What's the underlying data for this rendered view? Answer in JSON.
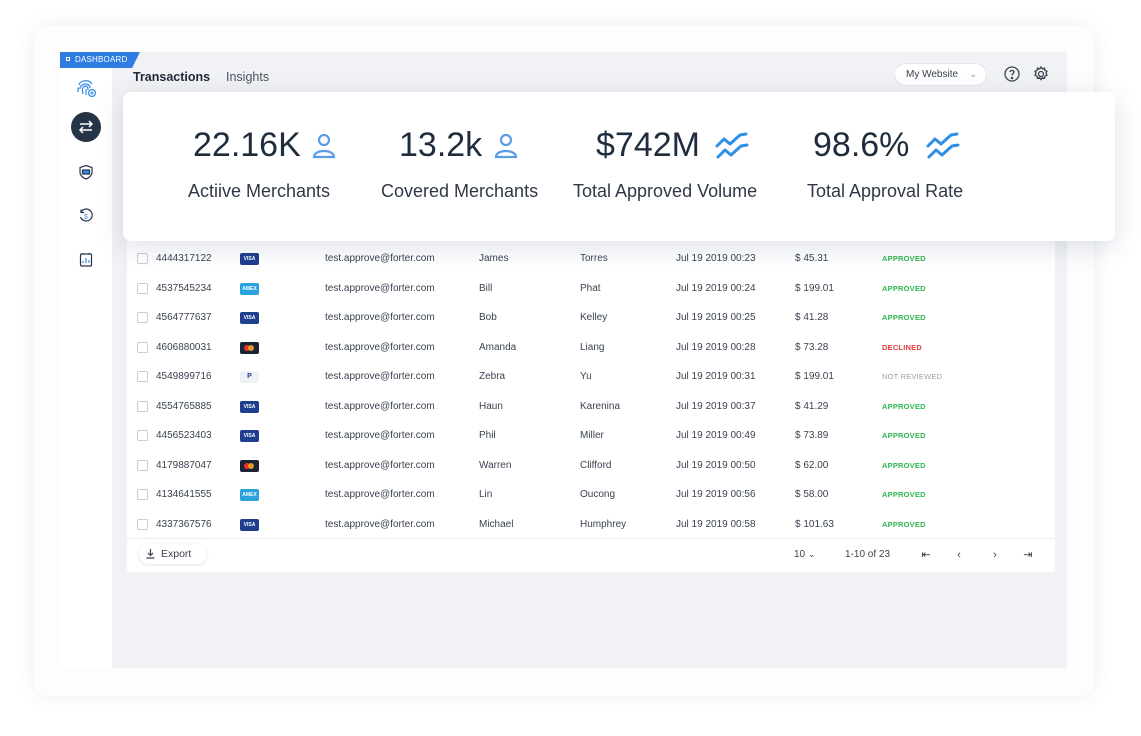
{
  "badge": "DASHBOARD",
  "tabs": [
    {
      "label": "Transactions",
      "active": true
    },
    {
      "label": "Insights",
      "active": false
    }
  ],
  "site_select": {
    "value": "My Website"
  },
  "stats": [
    {
      "value": "22.16K",
      "label": "Actiive Merchants",
      "icon": "user-icon"
    },
    {
      "value": "13.2k",
      "label": "Covered Merchants",
      "icon": "user-icon"
    },
    {
      "value": "$742M",
      "label": "Total Approved Volume",
      "icon": "trend-icon"
    },
    {
      "value": "98.6%",
      "label": "Total Approval Rate",
      "icon": "trend-icon"
    }
  ],
  "rows": [
    {
      "id": "4444317122",
      "card": "VISA",
      "email": "test.approve@forter.com",
      "first": "James",
      "last": "Torres",
      "date": "Jul 19 2019  00:23",
      "amount": "$ 45.31",
      "status": "APPROVED"
    },
    {
      "id": "4537545234",
      "card": "AMEX",
      "email": "test.approve@forter.com",
      "first": "Bill",
      "last": "Phat",
      "date": "Jul 19 2019  00:24",
      "amount": "$ 199.01",
      "status": "APPROVED"
    },
    {
      "id": "4564777637",
      "card": "VISA",
      "email": "test.approve@forter.com",
      "first": "Bob",
      "last": "Kelley",
      "date": "Jul 19 2019  00:25",
      "amount": "$ 41.28",
      "status": "APPROVED"
    },
    {
      "id": "4606880031",
      "card": "MC",
      "email": "test.approve@forter.com",
      "first": "Amanda",
      "last": "Liang",
      "date": "Jul 19 2019  00:28",
      "amount": "$ 73.28",
      "status": "DECLINED"
    },
    {
      "id": "4549899716",
      "card": "PAYPAL",
      "email": "test.approve@forter.com",
      "first": "Zebra",
      "last": "Yu",
      "date": "Jul 19 2019  00:31",
      "amount": "$ 199.01",
      "status": "NOT REVIEWED"
    },
    {
      "id": "4554765885",
      "card": "VISA",
      "email": "test.approve@forter.com",
      "first": "Haun",
      "last": "Karenina",
      "date": "Jul 19 2019  00:37",
      "amount": "$ 41.29",
      "status": "APPROVED"
    },
    {
      "id": "4456523403",
      "card": "VISA",
      "email": "test.approve@forter.com",
      "first": "Phil",
      "last": "Miller",
      "date": "Jul 19 2019  00:49",
      "amount": "$ 73.89",
      "status": "APPROVED"
    },
    {
      "id": "4179887047",
      "card": "MC",
      "email": "test.approve@forter.com",
      "first": "Warren",
      "last": "Clifford",
      "date": "Jul 19 2019  00:50",
      "amount": "$ 62.00",
      "status": "APPROVED"
    },
    {
      "id": "4134641555",
      "card": "AMEX",
      "email": "test.approve@forter.com",
      "first": "Lin",
      "last": "Oucong",
      "date": "Jul 19 2019  00:56",
      "amount": "$ 58.00",
      "status": "APPROVED"
    },
    {
      "id": "4337367576",
      "card": "VISA",
      "email": "test.approve@forter.com",
      "first": "Michael",
      "last": "Humphrey",
      "date": "Jul 19 2019  00:58",
      "amount": "$ 101.63",
      "status": "APPROVED"
    }
  ],
  "footer": {
    "export_label": "Export",
    "per_page": "10",
    "range": "1-10 of 23"
  },
  "colors": {
    "accent": "#2f7de1",
    "approved": "#2eb84f",
    "declined": "#e13b3b",
    "nav_active": "#263447"
  }
}
